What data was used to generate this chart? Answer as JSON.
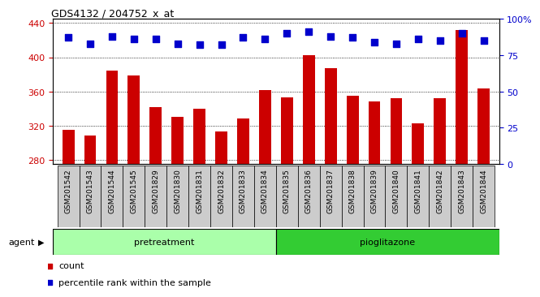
{
  "title": "GDS4132 / 204752_x_at",
  "categories": [
    "GSM201542",
    "GSM201543",
    "GSM201544",
    "GSM201545",
    "GSM201829",
    "GSM201830",
    "GSM201831",
    "GSM201832",
    "GSM201833",
    "GSM201834",
    "GSM201835",
    "GSM201836",
    "GSM201837",
    "GSM201838",
    "GSM201839",
    "GSM201840",
    "GSM201841",
    "GSM201842",
    "GSM201843",
    "GSM201844"
  ],
  "counts": [
    315,
    308,
    384,
    379,
    342,
    330,
    340,
    313,
    328,
    362,
    353,
    402,
    387,
    355,
    348,
    352,
    323,
    352,
    432,
    363
  ],
  "percentile_ranks": [
    87,
    83,
    88,
    86,
    86,
    83,
    82,
    82,
    87,
    86,
    90,
    91,
    88,
    87,
    84,
    83,
    86,
    85,
    90,
    85
  ],
  "pretreatment_count": 10,
  "pioglitazone_count": 10,
  "ylim_left": [
    275,
    445
  ],
  "ylim_right": [
    0,
    100
  ],
  "left_ticks": [
    280,
    320,
    360,
    400,
    440
  ],
  "right_ticks": [
    0,
    25,
    50,
    75,
    100
  ],
  "right_tick_labels": [
    "0",
    "25",
    "50",
    "75",
    "100%"
  ],
  "bar_color": "#cc0000",
  "dot_color": "#0000cc",
  "pretreatment_color_light": "#aaffaa",
  "pioglitazone_color": "#33cc33",
  "bg_color": "#cccccc",
  "bar_width": 0.55,
  "dot_size": 35,
  "dot_marker": "s",
  "tick_label_fontsize": 6.5,
  "axis_label_fontsize": 8,
  "title_fontsize": 9
}
